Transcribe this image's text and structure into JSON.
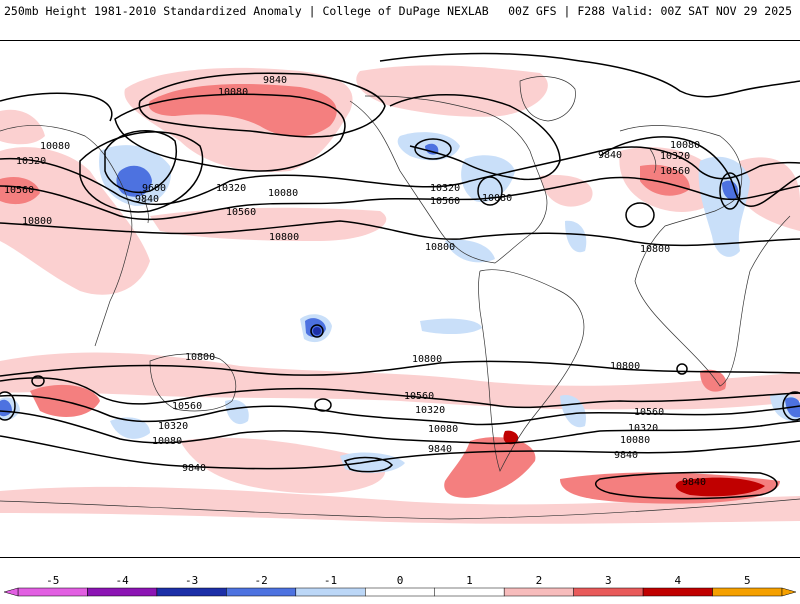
{
  "header": {
    "left": "250mb Height 1981-2010 Standardized Anomaly | College of DuPage NEXLAB",
    "right": "00Z GFS | F288 Valid: 00Z SAT NOV 29 2025"
  },
  "legend": {
    "ticks": [
      "-5",
      "-4",
      "-3",
      "-2",
      "-1",
      "0",
      "1",
      "2",
      "3",
      "4",
      "5"
    ],
    "colors": [
      "#e25fe2",
      "#8c14b4",
      "#1c2fa8",
      "#4d72e0",
      "#bcd7f7",
      "#ffffff",
      "#ffffff",
      "#f7bcbc",
      "#e85a5a",
      "#c00000",
      "#f5a000"
    ]
  },
  "colors": {
    "weak_pos": "#fbd0d0",
    "mod_pos": "#f47f7f",
    "strong_pos": "#c00000",
    "weak_neg": "#c9dff9",
    "mod_neg": "#4d72e0",
    "strong_neg": "#1c2fa8"
  },
  "contour_labels": [
    {
      "id": "l1",
      "text": "9840"
    },
    {
      "id": "l2",
      "text": "10080"
    },
    {
      "id": "l3",
      "text": "10080"
    },
    {
      "id": "l4",
      "text": "10320"
    },
    {
      "id": "l5",
      "text": "10560"
    },
    {
      "id": "l6",
      "text": "9600"
    },
    {
      "id": "l7",
      "text": "9840"
    },
    {
      "id": "l8",
      "text": "10800"
    },
    {
      "id": "l9",
      "text": "10320"
    },
    {
      "id": "l10",
      "text": "10080"
    },
    {
      "id": "l11",
      "text": "10560"
    },
    {
      "id": "l12",
      "text": "10800"
    },
    {
      "id": "l13",
      "text": "10320"
    },
    {
      "id": "l14",
      "text": "10560"
    },
    {
      "id": "l15",
      "text": "10080"
    },
    {
      "id": "l16",
      "text": "10800"
    },
    {
      "id": "l17",
      "text": "9840"
    },
    {
      "id": "l18",
      "text": "10080"
    },
    {
      "id": "l19",
      "text": "10320"
    },
    {
      "id": "l20",
      "text": "10560"
    },
    {
      "id": "l21",
      "text": "10800"
    },
    {
      "id": "l22",
      "text": "10800"
    },
    {
      "id": "l23",
      "text": "10560"
    },
    {
      "id": "l24",
      "text": "10320"
    },
    {
      "id": "l25",
      "text": "10080"
    },
    {
      "id": "l26",
      "text": "9840"
    },
    {
      "id": "l27",
      "text": "10800"
    },
    {
      "id": "l28",
      "text": "10560"
    },
    {
      "id": "l29",
      "text": "10320"
    },
    {
      "id": "l30",
      "text": "10080"
    },
    {
      "id": "l31",
      "text": "9840"
    },
    {
      "id": "l32",
      "text": "10800"
    },
    {
      "id": "l33",
      "text": "10560"
    },
    {
      "id": "l34",
      "text": "10320"
    },
    {
      "id": "l35",
      "text": "10080"
    },
    {
      "id": "l36",
      "text": "9840"
    },
    {
      "id": "l37",
      "text": "9840"
    }
  ]
}
